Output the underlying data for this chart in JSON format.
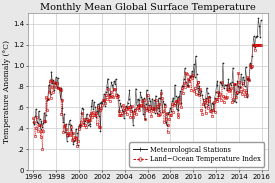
{
  "title": "Monthly Mean Global Surface Temperature",
  "ylabel": "Temperature Anomaly (°C)",
  "xlim": [
    1995.5,
    2016.5
  ],
  "ylim": [
    0.0,
    1.5
  ],
  "yticks": [
    0.0,
    0.2,
    0.4,
    0.6,
    0.8,
    1.0,
    1.2,
    1.4
  ],
  "ytick_labels": [
    "0",
    ".2",
    ".4",
    ".6",
    ".8",
    "1.0",
    "1.2",
    "1.4"
  ],
  "xticks": [
    1996,
    1998,
    2000,
    2002,
    2004,
    2006,
    2008,
    2010,
    2012,
    2014,
    2016
  ],
  "legend_labels": [
    "Meteorological Stations",
    "Land−Ocean Temperature Index"
  ],
  "bg_color": "#e8e8e8",
  "plot_bg": "#ffffff",
  "met_color": "#222222",
  "loti_color": "#cc0000",
  "grid_color": "#cccccc",
  "title_fontsize": 7.0,
  "label_fontsize": 5.5,
  "tick_fontsize": 5.0,
  "legend_fontsize": 4.8
}
